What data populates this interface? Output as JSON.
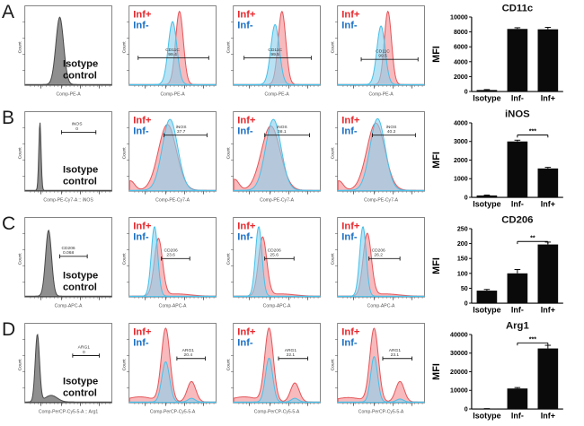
{
  "figure": {
    "count_axis_label": "Count",
    "isotype": {
      "line1": "Isotype",
      "line2": "control"
    },
    "legend": {
      "inf_plus": "Inf+",
      "inf_minus": "Inf-"
    },
    "colors": {
      "red_line": "#e4575b",
      "red_fill": "rgba(243,130,134,0.55)",
      "blue_line": "#49c0e8",
      "blue_fill": "rgba(140,208,238,0.62)",
      "gray_line": "#4a4a4a",
      "gray_fill": "rgba(128,128,128,0.88)",
      "legend_red": "#e8262b",
      "legend_blue": "#1a6fc4",
      "bar": "#0a0a0a"
    },
    "rows": [
      {
        "letter": "A",
        "marker": "CD11c",
        "panels": [
          {
            "kind": "isotype",
            "xlabel": "Comp-PE-A",
            "gate": null,
            "curves": [
              {
                "color": "gray",
                "peaks": [
                  {
                    "c": 0.4,
                    "w": 0.045,
                    "h": 0.92
                  }
                ]
              }
            ]
          },
          {
            "kind": "overlay",
            "xlabel": "Comp-PE-A",
            "gate": {
              "x1": 0.1,
              "x2": 0.92,
              "y": 0.37,
              "lx": 0.5,
              "name": "CD11C",
              "value": "99.4"
            },
            "curves": [
              {
                "color": "red",
                "peaks": [
                  {
                    "c": 0.58,
                    "w": 0.045,
                    "h": 1.0
                  }
                ]
              },
              {
                "color": "blue",
                "peaks": [
                  {
                    "c": 0.5,
                    "w": 0.05,
                    "h": 0.86
                  }
                ]
              }
            ]
          },
          {
            "kind": "overlay",
            "xlabel": "Comp-PE-A",
            "gate": {
              "x1": 0.12,
              "x2": 0.9,
              "y": 0.37,
              "lx": 0.48,
              "name": "CD11C",
              "value": "99.5"
            },
            "curves": [
              {
                "color": "red",
                "peaks": [
                  {
                    "c": 0.56,
                    "w": 0.045,
                    "h": 1.0
                  }
                ]
              },
              {
                "color": "blue",
                "peaks": [
                  {
                    "c": 0.48,
                    "w": 0.05,
                    "h": 0.82
                  }
                ]
              }
            ]
          },
          {
            "kind": "overlay",
            "xlabel": "Comp-PE-A",
            "gate": {
              "x1": 0.27,
              "x2": 0.93,
              "y": 0.35,
              "lx": 0.52,
              "name": "CD11C",
              "value": "99.5"
            },
            "curves": [
              {
                "color": "red",
                "peaks": [
                  {
                    "c": 0.58,
                    "w": 0.042,
                    "h": 1.0
                  }
                ]
              },
              {
                "color": "blue",
                "peaks": [
                  {
                    "c": 0.5,
                    "w": 0.048,
                    "h": 0.8
                  }
                ]
              }
            ]
          }
        ]
      },
      {
        "letter": "B",
        "marker": "iNOS",
        "panels": [
          {
            "kind": "isotype",
            "xlabel": "Comp-PE-Cy7-A :: iNOS",
            "gate": {
              "x1": 0.42,
              "x2": 0.82,
              "y": 0.8,
              "lx": 0.6,
              "name": "iNOS",
              "value": "0"
            },
            "curves": [
              {
                "color": "gray",
                "peaks": [
                  {
                    "c": 0.17,
                    "w": 0.013,
                    "h": 0.93
                  }
                ]
              }
            ]
          },
          {
            "kind": "overlay",
            "xlabel": "Comp-PE-Cy7-A",
            "gate": {
              "x1": 0.4,
              "x2": 0.9,
              "y": 0.76,
              "lx": 0.6,
              "name": "iNOS",
              "value": "37.7"
            },
            "curves": [
              {
                "color": "red",
                "peaks": [
                  {
                    "c": 0.44,
                    "w": 0.105,
                    "h": 0.9
                  },
                  {
                    "c": 0.01,
                    "w": 0.05,
                    "h": 0.13
                  }
                ]
              },
              {
                "color": "blue",
                "peaks": [
                  {
                    "c": 0.47,
                    "w": 0.09,
                    "h": 0.97
                  }
                ]
              }
            ]
          },
          {
            "kind": "overlay",
            "xlabel": "Comp-PE-Cy7-A",
            "gate": {
              "x1": 0.36,
              "x2": 0.88,
              "y": 0.76,
              "lx": 0.56,
              "name": "iNOS",
              "value": "38.1"
            },
            "curves": [
              {
                "color": "red",
                "peaks": [
                  {
                    "c": 0.43,
                    "w": 0.11,
                    "h": 0.88
                  },
                  {
                    "c": 0.01,
                    "w": 0.05,
                    "h": 0.15
                  }
                ]
              },
              {
                "color": "blue",
                "peaks": [
                  {
                    "c": 0.46,
                    "w": 0.09,
                    "h": 0.97
                  }
                ]
              }
            ]
          },
          {
            "kind": "overlay",
            "xlabel": "Comp-PE-Cy7-A",
            "gate": {
              "x1": 0.4,
              "x2": 0.9,
              "y": 0.76,
              "lx": 0.62,
              "name": "iNOS",
              "value": "40.2"
            },
            "curves": [
              {
                "color": "red",
                "peaks": [
                  {
                    "c": 0.44,
                    "w": 0.105,
                    "h": 0.92
                  },
                  {
                    "c": 0.01,
                    "w": 0.05,
                    "h": 0.13
                  }
                ]
              },
              {
                "color": "blue",
                "peaks": [
                  {
                    "c": 0.46,
                    "w": 0.088,
                    "h": 0.98
                  }
                ]
              }
            ]
          }
        ]
      },
      {
        "letter": "C",
        "marker": "CD206",
        "panels": [
          {
            "kind": "isotype",
            "xlabel": "Comp-APC-A",
            "gate": {
              "x1": 0.4,
              "x2": 0.72,
              "y": 0.55,
              "lx": 0.5,
              "name": "CD206",
              "value": "0.068"
            },
            "curves": [
              {
                "color": "gray",
                "peaks": [
                  {
                    "c": 0.27,
                    "w": 0.035,
                    "h": 0.9
                  }
                ]
              }
            ]
          },
          {
            "kind": "overlay",
            "xlabel": "Comp-APC-A",
            "gate": {
              "x1": 0.37,
              "x2": 0.7,
              "y": 0.52,
              "lx": 0.48,
              "name": "CD206",
              "value": "23.6"
            },
            "curves": [
              {
                "color": "red",
                "peaks": [
                  {
                    "c": 0.335,
                    "w": 0.048,
                    "h": 0.78
                  },
                  {
                    "c": 0.55,
                    "w": 0.15,
                    "h": 0.03
                  }
                ]
              },
              {
                "color": "blue",
                "peaks": [
                  {
                    "c": 0.29,
                    "w": 0.038,
                    "h": 0.95
                  }
                ]
              }
            ]
          },
          {
            "kind": "overlay",
            "xlabel": "Comp-APC-A",
            "gate": {
              "x1": 0.36,
              "x2": 0.7,
              "y": 0.52,
              "lx": 0.47,
              "name": "CD206",
              "value": "25.6"
            },
            "curves": [
              {
                "color": "red",
                "peaks": [
                  {
                    "c": 0.335,
                    "w": 0.048,
                    "h": 0.8
                  },
                  {
                    "c": 0.55,
                    "w": 0.15,
                    "h": 0.03
                  }
                ]
              },
              {
                "color": "blue",
                "peaks": [
                  {
                    "c": 0.29,
                    "w": 0.038,
                    "h": 0.95
                  }
                ]
              }
            ]
          },
          {
            "kind": "overlay",
            "xlabel": "Comp-APC-A",
            "gate": {
              "x1": 0.36,
              "x2": 0.72,
              "y": 0.52,
              "lx": 0.47,
              "name": "CD206",
              "value": "26.2"
            },
            "curves": [
              {
                "color": "red",
                "peaks": [
                  {
                    "c": 0.34,
                    "w": 0.048,
                    "h": 0.85
                  },
                  {
                    "c": 0.55,
                    "w": 0.15,
                    "h": 0.03
                  }
                ]
              },
              {
                "color": "blue",
                "peaks": [
                  {
                    "c": 0.29,
                    "w": 0.038,
                    "h": 0.95
                  }
                ]
              }
            ]
          }
        ]
      },
      {
        "letter": "D",
        "marker": "Arg1",
        "panels": [
          {
            "kind": "isotype",
            "xlabel": "Comp-PerCP-Cy5-5-A :: Arg1",
            "gate": {
              "x1": 0.55,
              "x2": 0.86,
              "y": 0.64,
              "lx": 0.68,
              "name": "ARG1",
              "value": "0"
            },
            "curves": [
              {
                "color": "gray",
                "peaks": [
                  {
                    "c": 0.14,
                    "w": 0.025,
                    "h": 0.92
                  },
                  {
                    "c": 0.3,
                    "w": 0.07,
                    "h": 0.09
                  }
                ]
              }
            ]
          },
          {
            "kind": "overlay",
            "xlabel": "Comp-PerCP-Cy5-5-A",
            "gate": {
              "x1": 0.55,
              "x2": 0.88,
              "y": 0.6,
              "lx": 0.68,
              "name": "ARG1",
              "value": "20.4"
            },
            "curves": [
              {
                "color": "red",
                "peaks": [
                  {
                    "c": 0.42,
                    "w": 0.05,
                    "h": 1.0
                  },
                  {
                    "c": 0.72,
                    "w": 0.05,
                    "h": 0.28
                  },
                  {
                    "c": 0.12,
                    "w": 0.15,
                    "h": 0.07
                  }
                ]
              },
              {
                "color": "blue",
                "peaks": [
                  {
                    "c": 0.42,
                    "w": 0.045,
                    "h": 0.55
                  },
                  {
                    "c": 0.72,
                    "w": 0.04,
                    "h": 0.05
                  }
                ]
              }
            ]
          },
          {
            "kind": "overlay",
            "xlabel": "Comp-PerCP-Cy5-5-A",
            "gate": {
              "x1": 0.52,
              "x2": 0.86,
              "y": 0.6,
              "lx": 0.66,
              "name": "ARG1",
              "value": "22.1"
            },
            "curves": [
              {
                "color": "red",
                "peaks": [
                  {
                    "c": 0.41,
                    "w": 0.05,
                    "h": 1.0
                  },
                  {
                    "c": 0.71,
                    "w": 0.05,
                    "h": 0.26
                  },
                  {
                    "c": 0.12,
                    "w": 0.15,
                    "h": 0.07
                  }
                ]
              },
              {
                "color": "blue",
                "peaks": [
                  {
                    "c": 0.41,
                    "w": 0.042,
                    "h": 0.6
                  },
                  {
                    "c": 0.71,
                    "w": 0.04,
                    "h": 0.05
                  }
                ]
              }
            ]
          },
          {
            "kind": "overlay",
            "xlabel": "Comp-PerCP-Cy5-5-A",
            "gate": {
              "x1": 0.52,
              "x2": 0.86,
              "y": 0.6,
              "lx": 0.66,
              "name": "ARG1",
              "value": "23.1"
            },
            "curves": [
              {
                "color": "red",
                "peaks": [
                  {
                    "c": 0.42,
                    "w": 0.05,
                    "h": 1.0
                  },
                  {
                    "c": 0.72,
                    "w": 0.05,
                    "h": 0.28
                  },
                  {
                    "c": 0.12,
                    "w": 0.15,
                    "h": 0.06
                  }
                ]
              },
              {
                "color": "blue",
                "peaks": [
                  {
                    "c": 0.42,
                    "w": 0.04,
                    "h": 0.62
                  },
                  {
                    "c": 0.72,
                    "w": 0.04,
                    "h": 0.04
                  }
                ]
              }
            ]
          }
        ]
      }
    ]
  },
  "chart_data": [
    {
      "type": "bar",
      "title": "CD11c",
      "ylabel": "MFI",
      "categories": [
        "Isotype",
        "Inf-",
        "Inf+"
      ],
      "values": [
        200,
        8400,
        8350
      ],
      "errors": [
        60,
        160,
        260
      ],
      "ylim": [
        0,
        10000
      ],
      "yticks": [
        0,
        2000,
        4000,
        6000,
        8000,
        10000
      ],
      "significance": null
    },
    {
      "type": "bar",
      "title": "iNOS",
      "ylabel": "MFI",
      "categories": [
        "Isotype",
        "Inf-",
        "Inf+"
      ],
      "values": [
        100,
        3000,
        1550
      ],
      "errors": [
        20,
        70,
        60
      ],
      "ylim": [
        0,
        4000
      ],
      "yticks": [
        0,
        1000,
        2000,
        3000,
        4000
      ],
      "significance": {
        "between": [
          1,
          2
        ],
        "stars": "***",
        "y": 3350
      }
    },
    {
      "type": "bar",
      "title": "CD206",
      "ylabel": "MFI",
      "categories": [
        "Isotype",
        "Inf-",
        "Inf+"
      ],
      "values": [
        42,
        100,
        197
      ],
      "errors": [
        4,
        13,
        8
      ],
      "ylim": [
        0,
        250
      ],
      "yticks": [
        0,
        50,
        100,
        150,
        200,
        250
      ],
      "significance": {
        "between": [
          1,
          2
        ],
        "stars": "**",
        "y": 207
      }
    },
    {
      "type": "bar",
      "title": "Arg1",
      "ylabel": "MFI",
      "categories": [
        "Isotype",
        "Inf-",
        "Inf+"
      ],
      "values": [
        150,
        11000,
        32500
      ],
      "errors": [
        40,
        500,
        1700
      ],
      "ylim": [
        0,
        40000
      ],
      "yticks": [
        0,
        10000,
        20000,
        30000,
        40000
      ],
      "significance": {
        "between": [
          1,
          2
        ],
        "stars": "***",
        "y": 35500
      }
    }
  ]
}
